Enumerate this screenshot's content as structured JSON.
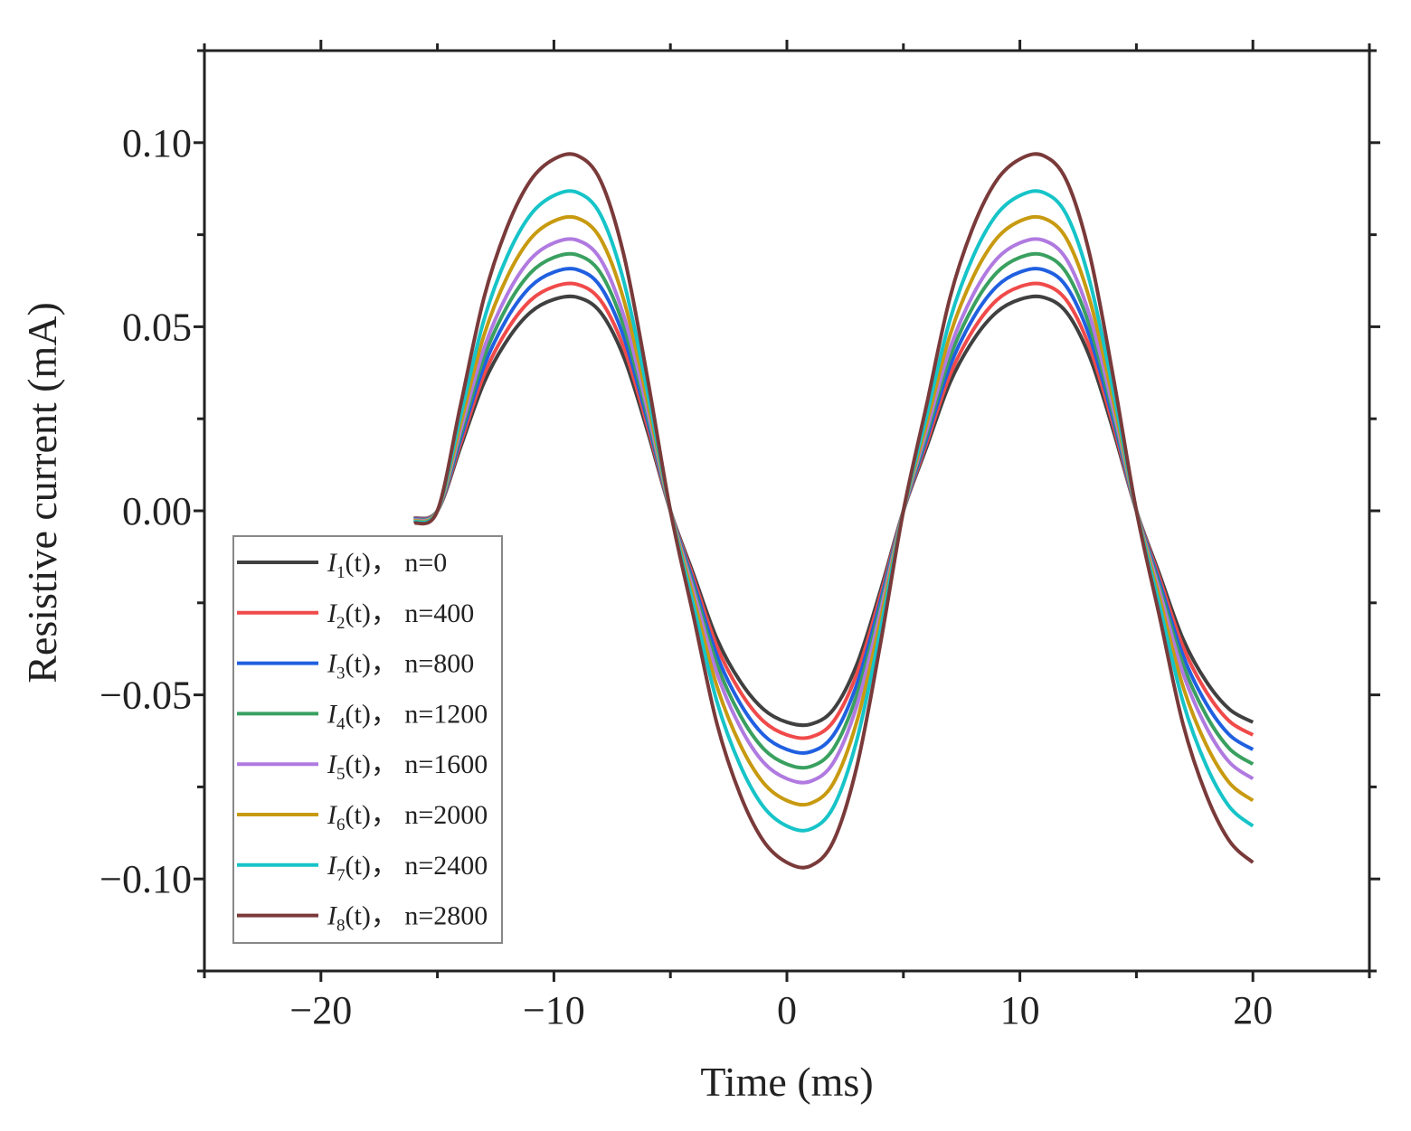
{
  "chart_data": {
    "type": "line",
    "xlabel": "Time (ms)",
    "ylabel": "Resistive current (mA)",
    "xlim": [
      -25,
      25
    ],
    "ylim": [
      -0.125,
      0.125
    ],
    "x_ticks": [
      -20,
      -10,
      0,
      10,
      20
    ],
    "x_tick_labels": [
      "−20",
      "−10",
      "0",
      "10",
      "20"
    ],
    "y_ticks": [
      0.1,
      0.05,
      0.0,
      -0.05,
      -0.1
    ],
    "y_tick_labels": [
      "0.10",
      "0.05",
      "0.00",
      "−0.05",
      "−0.10"
    ],
    "legend_position": "bottom-left",
    "grid": false,
    "x": [
      -16,
      -15,
      -14,
      -13,
      -12,
      -11,
      -10,
      -9,
      -8,
      -7,
      -6,
      -5,
      -4,
      -3,
      -2,
      -1,
      0,
      1,
      2,
      3,
      4,
      5,
      6,
      7,
      8,
      9,
      10,
      11,
      12,
      13,
      14,
      15,
      16,
      17,
      18,
      19,
      20
    ],
    "base_shape": [
      -0.035,
      0.0,
      0.3,
      0.6,
      0.8,
      0.93,
      0.99,
      1.0,
      0.93,
      0.72,
      0.38,
      0.0,
      -0.3,
      -0.6,
      -0.8,
      -0.93,
      -0.99,
      -1.0,
      -0.93,
      -0.72,
      -0.38,
      0.0,
      0.3,
      0.6,
      0.8,
      0.93,
      0.99,
      1.0,
      0.93,
      0.72,
      0.38,
      0.0,
      -0.3,
      -0.6,
      -0.8,
      -0.93,
      -0.99
    ],
    "series": [
      {
        "name_main": "I",
        "name_sub": "1",
        "name_arg": "(t)， n=0",
        "amplitude": 0.058,
        "color": "#404040"
      },
      {
        "name_main": "I",
        "name_sub": "2",
        "name_arg": "(t)， n=400",
        "amplitude": 0.0615,
        "color": "#f04a4a"
      },
      {
        "name_main": "I",
        "name_sub": "3",
        "name_arg": "(t)， n=800",
        "amplitude": 0.0655,
        "color": "#2060e0"
      },
      {
        "name_main": "I",
        "name_sub": "4",
        "name_arg": "(t)， n=1200",
        "amplitude": 0.0695,
        "color": "#3aa060"
      },
      {
        "name_main": "I",
        "name_sub": "5",
        "name_arg": "(t)， n=1600",
        "amplitude": 0.0735,
        "color": "#b07ae0"
      },
      {
        "name_main": "I",
        "name_sub": "6",
        "name_arg": "(t)， n=2000",
        "amplitude": 0.0795,
        "color": "#c89a10"
      },
      {
        "name_main": "I",
        "name_sub": "7",
        "name_arg": "(t)， n=2400",
        "amplitude": 0.0865,
        "color": "#16c4c8"
      },
      {
        "name_main": "I",
        "name_sub": "8",
        "name_arg": "(t)， n=2800",
        "amplitude": 0.0965,
        "color": "#7a3a3a"
      }
    ]
  }
}
